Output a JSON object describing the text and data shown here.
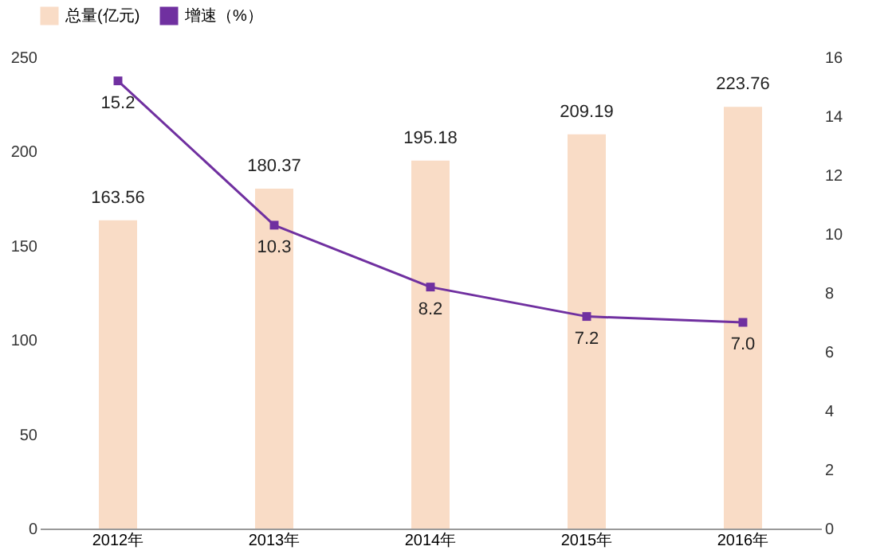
{
  "chart_data": {
    "type": "bar",
    "categories": [
      "2012年",
      "2013年",
      "2014年",
      "2015年",
      "2016年"
    ],
    "series": [
      {
        "name": "总量(亿元)",
        "color": "#f9dcc6",
        "values": [
          163.56,
          180.37,
          195.18,
          209.19,
          223.76
        ],
        "value_labels": [
          "163.56",
          "180.37",
          "195.18",
          "209.19",
          "223.76"
        ]
      },
      {
        "name": "增速（%）",
        "type": "line",
        "axis": "y2",
        "color": "#7030a0",
        "values": [
          15.2,
          10.3,
          8.2,
          7.2,
          7.0
        ],
        "value_labels": [
          "15.2",
          "10.3",
          "8.2",
          "7.2",
          "7.0"
        ]
      }
    ],
    "ylim": [
      0,
      250
    ],
    "yticks": [
      0,
      50,
      100,
      150,
      200,
      250
    ],
    "y2lim": [
      0,
      16
    ],
    "y2ticks": [
      0,
      2,
      4,
      6,
      8,
      10,
      12,
      14,
      16
    ],
    "legend": "top",
    "marker": "square",
    "line_style": "solid",
    "grid": false
  }
}
